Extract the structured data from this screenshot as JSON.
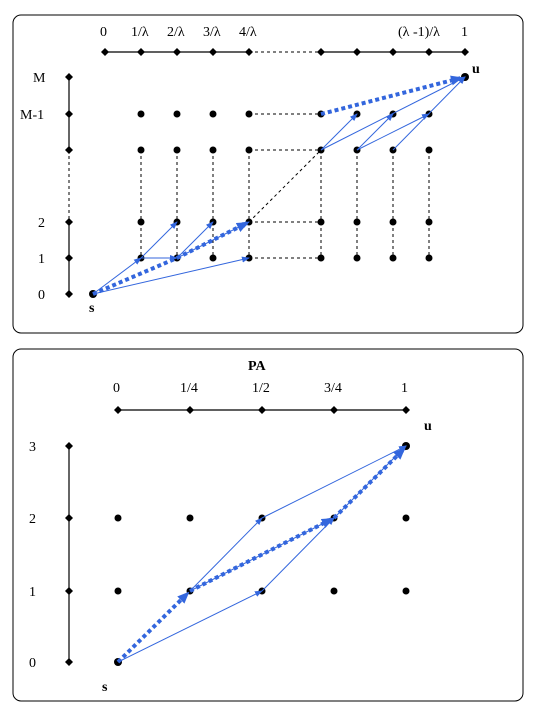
{
  "top_panel": {
    "x_ticks": [
      "0",
      "1/λ",
      "2/λ",
      "3/λ",
      "4/λ",
      "(λ -1)/λ",
      "1"
    ],
    "y_ticks": [
      "M",
      "M-1",
      "2",
      "1",
      "0"
    ],
    "source_label": "s",
    "target_label": "u"
  },
  "bottom_panel": {
    "title": "PA",
    "x_ticks": [
      "0",
      "1/4",
      "1/2",
      "3/4",
      "1"
    ],
    "y_ticks": [
      "3",
      "2",
      "1",
      "0"
    ],
    "source_label": "s",
    "target_label": "u"
  },
  "colors": {
    "arrow": "#3366dd",
    "frame": "#000000",
    "dot": "#000000"
  }
}
